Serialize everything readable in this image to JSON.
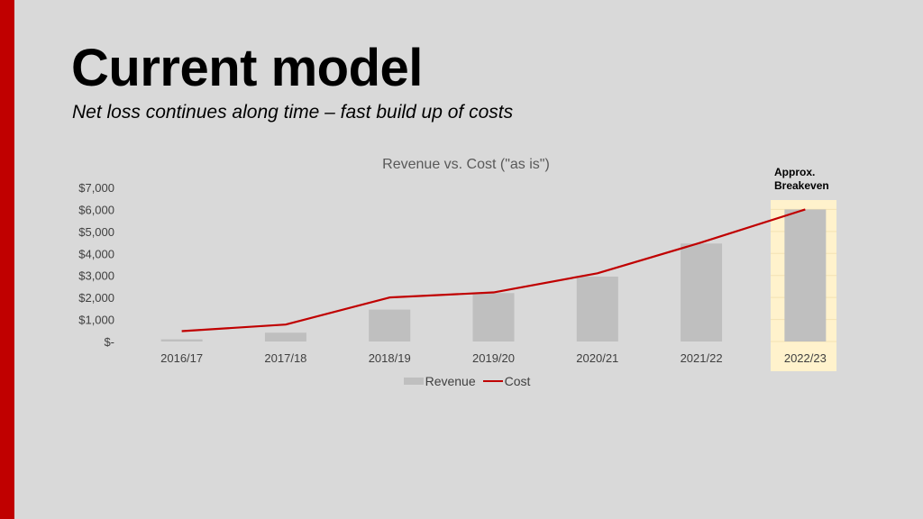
{
  "slide": {
    "title": "Current model",
    "subtitle": "Net loss continues along time – fast build up of costs",
    "accent_color": "#c00000",
    "background_color": "#d9d9d9",
    "highlight_color": "#fff2cc"
  },
  "chart_data": {
    "type": "bar",
    "title": "Revenue vs. Cost (\"as is\")",
    "xlabel": "",
    "ylabel": "",
    "categories": [
      "2016/17",
      "2017/18",
      "2018/19",
      "2019/20",
      "2020/21",
      "2021/22",
      "2022/23"
    ],
    "series": [
      {
        "name": "Revenue",
        "type": "bar",
        "color": "#bfbfbf",
        "values": [
          100,
          400,
          1450,
          2200,
          2950,
          4450,
          6000
        ]
      },
      {
        "name": "Cost",
        "type": "line",
        "color": "#c00000",
        "values": [
          470,
          770,
          2000,
          2230,
          3100,
          4500,
          6000
        ]
      }
    ],
    "ylim": [
      0,
      7000
    ],
    "yticks": [
      0,
      1000,
      2000,
      3000,
      4000,
      5000,
      6000,
      7000
    ],
    "ytick_labels": [
      "$-",
      "$1,000",
      "$2,000",
      "$3,000",
      "$4,000",
      "$5,000",
      "$6,000",
      "$7,000"
    ],
    "grid": false,
    "legend": "bottom",
    "annotation": {
      "text": "Approx. Breakeven",
      "category": "2022/23"
    }
  }
}
